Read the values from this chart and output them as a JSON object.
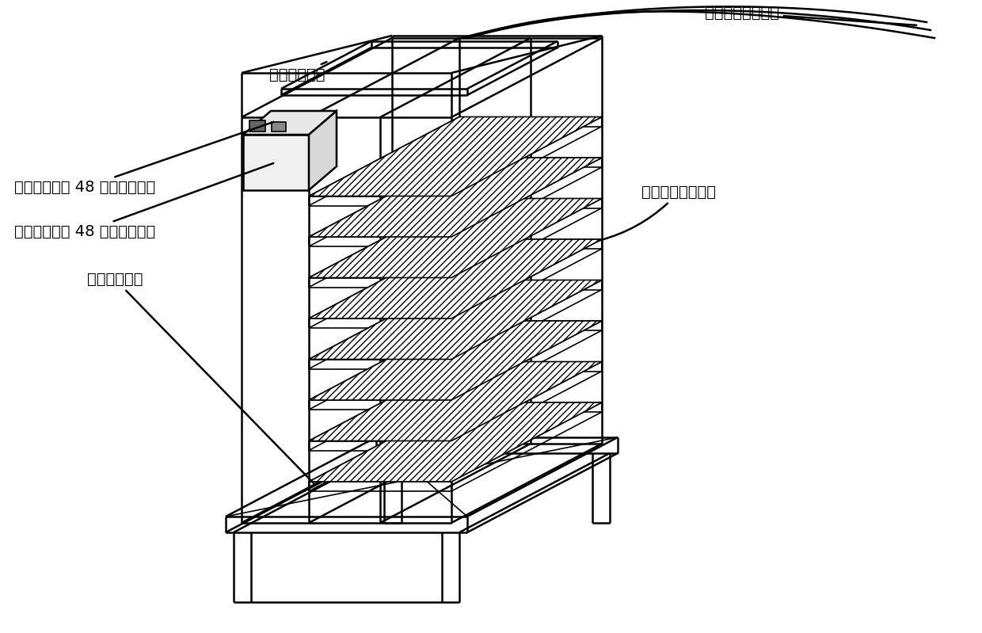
{
  "bg_color": "#ffffff",
  "line_color": "#000000",
  "labels": {
    "fu_board": "副电路测试板",
    "fu_bracket": "副电路测试板支架",
    "fu_socket": "副电路测试板 48 针连接器插座",
    "zhu_plug": "主电路测试板 48 针连接器插头",
    "zhu_board": "主电路测试板",
    "zhu_bracket": "主测试电路板支架"
  },
  "fontsize": 14,
  "lw": 1.8,
  "lw_thin": 1.2
}
